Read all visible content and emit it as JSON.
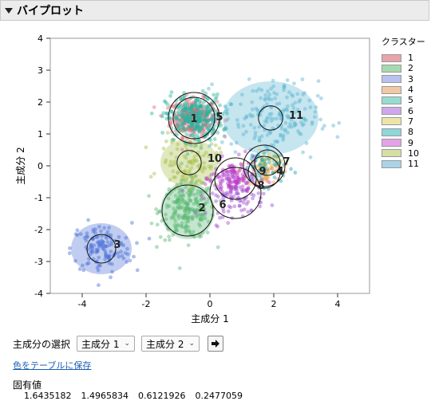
{
  "header": {
    "title": "バイプロット"
  },
  "chart_data": {
    "type": "scatter",
    "xlabel": "主成分 1",
    "ylabel": "主成分 2",
    "xlim": [
      -5,
      5
    ],
    "ylim": [
      -4,
      4
    ],
    "xticks": [
      -4,
      -2,
      0,
      2,
      4
    ],
    "yticks": [
      -4,
      -3,
      -2,
      -1,
      0,
      1,
      2,
      3,
      4
    ],
    "grid": false,
    "legend_position": "right",
    "legend_title": "クラスター",
    "clusters": [
      {
        "label": "1",
        "color": "#e06c77",
        "center": [
          -0.5,
          1.5
        ],
        "inner_r": 0.65,
        "ellipse": null,
        "count": 300
      },
      {
        "label": "2",
        "color": "#59b873",
        "center": [
          -0.7,
          -1.4
        ],
        "inner_r": 0.8,
        "ellipse": [
          0.85,
          0.9
        ],
        "count": 230
      },
      {
        "label": "3",
        "color": "#4a6fd8",
        "center": [
          -3.4,
          -2.6
        ],
        "inner_r": 0.45,
        "ellipse": [
          0.95,
          0.8
        ],
        "count": 130
      },
      {
        "label": "4",
        "color": "#ee9a57",
        "center": [
          1.7,
          -0.2
        ],
        "inner_r": 0.5,
        "ellipse": null,
        "count": 60
      },
      {
        "label": "5",
        "color": "#26b5a0",
        "center": [
          -0.5,
          1.5
        ],
        "inner_r": 0.8,
        "ellipse": null,
        "count": 300
      },
      {
        "label": "6",
        "color": "#9b4fd0",
        "center": [
          0.8,
          -0.85
        ],
        "inner_r": 0.8,
        "ellipse": null,
        "count": 130
      },
      {
        "label": "7",
        "color": "#dccf5a",
        "center": [
          1.8,
          0.1
        ],
        "inner_r": 0.4,
        "ellipse": null,
        "count": 50
      },
      {
        "label": "8",
        "color": "#1e9fb5",
        "center": [
          1.7,
          0.0
        ],
        "inner_r": 0.65,
        "ellipse": null,
        "count": 60
      },
      {
        "label": "9",
        "color": "#c13cc8",
        "center": [
          0.8,
          -0.4
        ],
        "inner_r": 0.65,
        "ellipse": null,
        "count": 100
      },
      {
        "label": "10",
        "color": "#a7be47",
        "center": [
          -0.65,
          0.1
        ],
        "inner_r": 0.38,
        "ellipse": [
          0.9,
          0.75
        ],
        "count": 100
      },
      {
        "label": "11",
        "color": "#5ab4d0",
        "center": [
          1.9,
          1.5
        ],
        "inner_r": 0.38,
        "ellipse": [
          1.5,
          1.15
        ],
        "count": 190
      }
    ],
    "ellipse_opacity": 0.35,
    "label_positions": {
      "1": [
        -0.5,
        1.5
      ],
      "2": [
        -0.25,
        -1.3
      ],
      "3": [
        -2.9,
        -2.45
      ],
      "4": [
        2.2,
        -0.15
      ],
      "5": [
        0.3,
        1.55
      ],
      "6": [
        0.4,
        -1.2
      ],
      "7": [
        2.4,
        0.15
      ],
      "8": [
        1.6,
        -0.6
      ],
      "9": [
        1.65,
        -0.15
      ],
      "10": [
        0.15,
        0.25
      ],
      "11": [
        2.7,
        1.6
      ]
    }
  },
  "legend": {
    "title": "クラスター",
    "items": [
      {
        "label": "1",
        "color": "#e8a4aa"
      },
      {
        "label": "2",
        "color": "#a5d9af"
      },
      {
        "label": "3",
        "color": "#b7c2ee"
      },
      {
        "label": "4",
        "color": "#f3c8a5"
      },
      {
        "label": "5",
        "color": "#98dcd0"
      },
      {
        "label": "6",
        "color": "#cfa8ec"
      },
      {
        "label": "7",
        "color": "#ebe5a9"
      },
      {
        "label": "8",
        "color": "#8fd6d8"
      },
      {
        "label": "9",
        "color": "#e4a3e9"
      },
      {
        "label": "10",
        "color": "#d5dfa5"
      },
      {
        "label": "11",
        "color": "#a8d4e6"
      }
    ]
  },
  "controls": {
    "pc_select_label": "主成分の選択",
    "x_select_value": "主成分 1",
    "y_select_value": "主成分 2",
    "save_colors_link": "色をテーブルに保存"
  },
  "eigen": {
    "title": "固有値",
    "values": [
      "1.6435182",
      "1.4965834",
      "0.6121926",
      "0.2477059"
    ]
  }
}
